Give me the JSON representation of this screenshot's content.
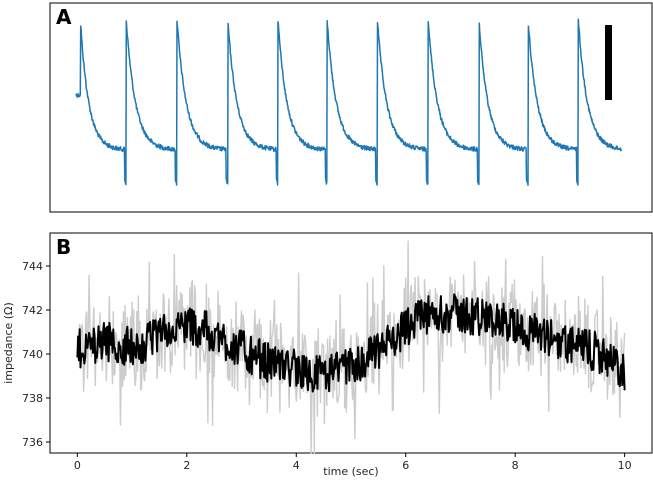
{
  "chart_data": [
    {
      "panel_label": "A",
      "type": "line",
      "x_axis_visible": false,
      "y_axis_visible": false,
      "series": [
        {
          "color": "#1f77b4",
          "style": "pulsatile waveform",
          "beats": 11
        }
      ],
      "beat_times": [
        0.08,
        0.92,
        1.85,
        2.78,
        3.7,
        4.6,
        5.52,
        6.45,
        7.38,
        8.28,
        9.2
      ],
      "scale_bar": {
        "color": "#000000"
      }
    },
    {
      "panel_label": "B",
      "type": "line",
      "xlabel": "time (sec)",
      "ylabel": "impedance (Ω)",
      "xlim": [
        -0.5,
        10.5
      ],
      "ylim": [
        735.5,
        745.5
      ],
      "x_ticks": [
        "0",
        "2",
        "4",
        "6",
        "8",
        "10"
      ],
      "y_ticks": [
        "736",
        "738",
        "740",
        "742",
        "744"
      ],
      "series": [
        {
          "role": "raw",
          "color": "#cccccc",
          "x": [
            0,
            0.5,
            1,
            1.5,
            2,
            2.5,
            3,
            3.5,
            4,
            4.5,
            5,
            5.5,
            6,
            6.5,
            7,
            7.5,
            8,
            8.5,
            9,
            9.5,
            10
          ],
          "values": [
            740.2,
            740.6,
            740.3,
            740.8,
            741.4,
            740.9,
            740.2,
            739.6,
            739.3,
            739.0,
            739.4,
            740.1,
            741.2,
            741.9,
            741.8,
            741.7,
            741.2,
            740.9,
            740.4,
            740.1,
            739.2
          ]
        },
        {
          "role": "smoothed",
          "color": "#000000",
          "x": [
            0,
            0.5,
            1,
            1.5,
            2,
            2.5,
            3,
            3.5,
            4,
            4.5,
            5,
            5.5,
            6,
            6.5,
            7,
            7.5,
            8,
            8.5,
            9,
            9.5,
            10
          ],
          "values": [
            740.2,
            740.6,
            740.3,
            740.8,
            741.4,
            740.9,
            740.2,
            739.6,
            739.3,
            739.0,
            739.4,
            740.1,
            741.2,
            741.9,
            741.8,
            741.7,
            741.2,
            740.9,
            740.4,
            740.1,
            739.2
          ]
        }
      ]
    }
  ]
}
